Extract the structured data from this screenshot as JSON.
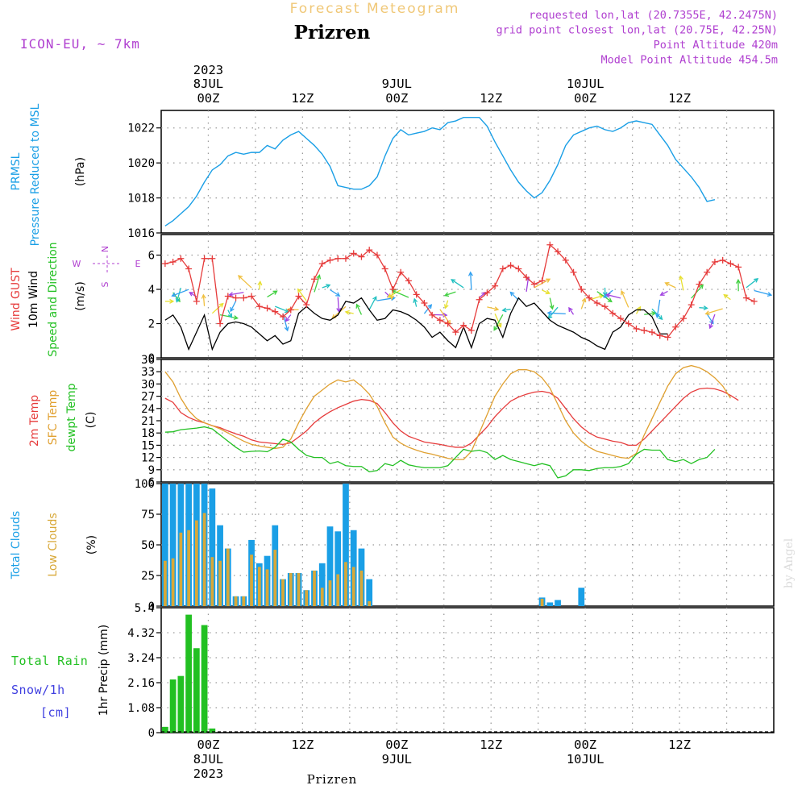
{
  "header": {
    "title": "Forecast Meteogram",
    "location": "Prizren",
    "model": "ICON-EU, ~ 7km",
    "info": [
      "requested lon,lat (20.7355E, 42.2475N)",
      "grid point closest lon,lat (20.75E, 42.25N)",
      "Point Altitude 420m",
      "Model Point Altitude 454.5m"
    ],
    "footer_location": "Prizren",
    "credit": "by Angel"
  },
  "time_axis": {
    "start": "2023-07-07T18Z",
    "step_hours": 1,
    "top_labels": [
      {
        "line1": "2023",
        "line2": "8JUL",
        "line3": "00Z",
        "hour": 6
      },
      {
        "line1": "",
        "line2": "",
        "line3": "12Z",
        "hour": 18
      },
      {
        "line1": "",
        "line2": "9JUL",
        "line3": "00Z",
        "hour": 30
      },
      {
        "line1": "",
        "line2": "",
        "line3": "12Z",
        "hour": 42
      },
      {
        "line1": "",
        "line2": "10JUL",
        "line3": "00Z",
        "hour": 54
      },
      {
        "line1": "",
        "line2": "",
        "line3": "12Z",
        "hour": 66
      }
    ],
    "bottom_labels": [
      {
        "line1": "00Z",
        "line2": "8JUL",
        "line3": "2023",
        "hour": 6
      },
      {
        "line1": "12Z",
        "line2": "",
        "line3": "",
        "hour": 18
      },
      {
        "line1": "00Z",
        "line2": "9JUL",
        "line3": "",
        "hour": 30
      },
      {
        "line1": "12Z",
        "line2": "",
        "line3": "",
        "hour": 42
      },
      {
        "line1": "00Z",
        "line2": "10JUL",
        "line3": "",
        "hour": 54
      },
      {
        "line1": "12Z",
        "line2": "",
        "line3": "",
        "hour": 66
      }
    ]
  },
  "colors": {
    "prmsl": "#1a9fe6",
    "gust": "#e63b3b",
    "wind": "#000000",
    "temp2m": "#e63b3b",
    "sfc": "#e0a030",
    "dew": "#22c022",
    "total_clouds": "#1a9fe6",
    "low_clouds": "#d8a838",
    "rain": "#22c022",
    "snow": "#4040e0",
    "info": "#b040d0",
    "title": "#f0c878",
    "grid": "#9a9a9a"
  },
  "chart_data": [
    {
      "type": "line",
      "id": "pressure",
      "labels": {
        "left1": "PRMSL",
        "left2": "Pressure Reduced to MSL",
        "unit": "(hPa)"
      },
      "yticks": [
        1016,
        1018,
        1020,
        1022
      ],
      "ylim": [
        1016,
        1023
      ],
      "series": [
        {
          "name": "PRMSL",
          "values": [
            1016.4,
            1016.7,
            1017.1,
            1017.5,
            1018.1,
            1018.9,
            1019.6,
            1019.9,
            1020.4,
            1020.6,
            1020.5,
            1020.6,
            1020.6,
            1021.0,
            1020.8,
            1021.3,
            1021.6,
            1021.8,
            1021.4,
            1021.0,
            1020.5,
            1019.8,
            1018.7,
            1018.6,
            1018.5,
            1018.5,
            1018.7,
            1019.2,
            1020.4,
            1021.4,
            1021.9,
            1021.6,
            1021.7,
            1021.8,
            1022.0,
            1021.9,
            1022.3,
            1022.4,
            1022.6,
            1022.6,
            1022.6,
            1022.1,
            1021.2,
            1020.4,
            1019.6,
            1018.9,
            1018.4,
            1018.0,
            1018.3,
            1019.0,
            1019.9,
            1021.0,
            1021.6,
            1021.8,
            1022.0,
            1022.1,
            1021.9,
            1021.8,
            1022.0,
            1022.3,
            1022.4,
            1022.3,
            1022.2,
            1021.6,
            1021.0,
            1020.2,
            1019.7,
            1019.2,
            1018.6,
            1017.8,
            1017.9
          ]
        }
      ]
    },
    {
      "type": "line",
      "id": "wind",
      "labels": {
        "left1": "Wind GUST",
        "left2": "10m Wind",
        "left3": "Speed and Direction",
        "unit": "(m/s)",
        "compass": [
          "N",
          "W",
          "E",
          "S"
        ]
      },
      "yticks": [
        0,
        2,
        4,
        6
      ],
      "ylim": [
        0,
        7.2
      ],
      "series": [
        {
          "name": "Wind GUST",
          "values": [
            5.5,
            5.6,
            5.8,
            5.2,
            3.3,
            5.8,
            5.8,
            2.0,
            3.6,
            3.5,
            3.5,
            3.6,
            3.0,
            2.9,
            2.7,
            2.4,
            2.8,
            3.6,
            3.1,
            4.6,
            5.5,
            5.7,
            5.8,
            5.8,
            6.1,
            5.9,
            6.3,
            6.0,
            5.2,
            4.0,
            5.0,
            4.5,
            3.7,
            3.2,
            2.5,
            2.2,
            2.0,
            1.5,
            1.9,
            1.6,
            3.4,
            3.8,
            4.2,
            5.2,
            5.4,
            5.2,
            4.7,
            4.3,
            4.5,
            6.6,
            6.2,
            5.7,
            5.0,
            4.0,
            3.5,
            3.2,
            3.0,
            2.6,
            2.3,
            2.0,
            1.7,
            1.6,
            1.5,
            1.3,
            1.2,
            1.8,
            2.3,
            3.1,
            4.3,
            5.0,
            5.6,
            5.7,
            5.5,
            5.3,
            3.5,
            3.3
          ]
        },
        {
          "name": "10m Wind",
          "values": [
            2.2,
            2.5,
            1.8,
            0.5,
            1.5,
            2.5,
            0.5,
            1.5,
            2.0,
            2.1,
            2.0,
            1.8,
            1.4,
            1.0,
            1.3,
            0.8,
            1.0,
            2.6,
            3.0,
            2.6,
            2.3,
            2.2,
            2.5,
            3.3,
            3.2,
            3.5,
            2.8,
            2.2,
            2.3,
            2.8,
            2.7,
            2.5,
            2.2,
            1.8,
            1.2,
            1.5,
            1.0,
            0.6,
            1.8,
            0.6,
            2.0,
            2.3,
            2.2,
            1.2,
            2.6,
            3.5,
            3.0,
            3.2,
            2.7,
            2.2,
            1.9,
            1.7,
            1.5,
            1.2,
            1.0,
            0.7,
            0.5,
            1.5,
            1.8,
            2.5,
            2.8,
            2.8,
            2.4,
            1.4,
            1.4
          ]
        }
      ]
    },
    {
      "type": "line",
      "id": "temperature",
      "labels": {
        "left1": "2m Temp",
        "left2": "SFC Temp",
        "left3": "dewpt Temp",
        "unit": "(C)"
      },
      "yticks": [
        6,
        9,
        12,
        15,
        18,
        21,
        24,
        27,
        30,
        33,
        36
      ],
      "ylim": [
        6,
        36
      ],
      "series": [
        {
          "name": "2m Temp",
          "values": [
            26.5,
            25.5,
            23.0,
            21.8,
            21.0,
            20.5,
            19.8,
            19.3,
            18.5,
            17.8,
            17.2,
            16.3,
            15.8,
            15.6,
            15.4,
            15.2,
            15.6,
            17.0,
            18.5,
            20.5,
            22.0,
            23.2,
            24.2,
            25.0,
            25.8,
            26.2,
            26.0,
            25.2,
            23.0,
            20.5,
            18.5,
            17.2,
            16.5,
            15.8,
            15.5,
            15.2,
            14.8,
            14.5,
            14.5,
            15.5,
            17.5,
            19.5,
            22.0,
            24.0,
            25.8,
            26.8,
            27.5,
            28.0,
            28.2,
            27.8,
            26.5,
            24.0,
            21.5,
            19.5,
            18.0,
            17.0,
            16.5,
            16.0,
            15.7,
            15.0,
            15.0,
            16.5,
            18.5,
            20.5,
            22.5,
            24.5,
            26.5,
            28.0,
            28.8,
            29.0,
            28.8,
            28.2,
            27.2,
            26.0
          ]
        },
        {
          "name": "SFC Temp",
          "values": [
            33.0,
            30.5,
            26.5,
            23.5,
            21.5,
            20.5,
            19.8,
            19.0,
            18.0,
            17.0,
            16.0,
            15.2,
            14.8,
            14.5,
            14.2,
            14.5,
            16.5,
            20.5,
            24.0,
            27.0,
            28.5,
            30.0,
            31.0,
            30.5,
            31.0,
            29.5,
            27.5,
            24.5,
            20.5,
            17.0,
            15.5,
            14.5,
            13.8,
            13.2,
            12.8,
            12.3,
            11.8,
            11.5,
            11.5,
            13.5,
            18.0,
            22.5,
            27.0,
            30.0,
            32.5,
            33.5,
            33.5,
            33.0,
            31.5,
            29.0,
            25.0,
            21.0,
            18.0,
            16.0,
            14.5,
            13.5,
            13.0,
            12.5,
            12.0,
            11.8,
            13.0,
            17.5,
            21.5,
            25.5,
            29.5,
            32.5,
            34.0,
            34.5,
            34.0,
            33.0,
            31.5,
            29.5,
            26.5
          ]
        },
        {
          "name": "dewpt Temp",
          "values": [
            18.2,
            18.3,
            18.8,
            19.0,
            19.2,
            19.5,
            19.0,
            17.5,
            16.0,
            14.5,
            13.3,
            13.5,
            13.6,
            13.4,
            14.5,
            16.5,
            15.8,
            14.0,
            12.5,
            12.0,
            12.0,
            10.5,
            11.0,
            10.0,
            9.8,
            9.8,
            8.5,
            8.8,
            10.5,
            10.0,
            11.3,
            10.2,
            9.8,
            9.5,
            9.5,
            9.5,
            10.0,
            12.0,
            14.0,
            13.5,
            13.8,
            13.2,
            11.5,
            12.5,
            11.5,
            11.0,
            10.5,
            10.0,
            10.5,
            10.0,
            7.0,
            7.5,
            9.0,
            9.0,
            8.8,
            9.3,
            9.5,
            9.5,
            9.8,
            10.5,
            12.8,
            14.0,
            13.8,
            13.8,
            11.5,
            11.0,
            11.5,
            10.5,
            11.5,
            12.0,
            14.0
          ]
        }
      ]
    },
    {
      "type": "bar",
      "id": "clouds",
      "labels": {
        "left1": "Total Clouds",
        "left2": "Low Clouds",
        "unit": "(%)"
      },
      "yticks": [
        0,
        25,
        50,
        75,
        100
      ],
      "ylim": [
        0,
        100
      ],
      "series": [
        {
          "name": "Total Clouds",
          "values": [
            100,
            100,
            100,
            100,
            100,
            100,
            96,
            66,
            47,
            8,
            8,
            54,
            35,
            41,
            66,
            22,
            27,
            27,
            13,
            29,
            35,
            65,
            61,
            100,
            62,
            47,
            22,
            0,
            0,
            0,
            0,
            0,
            0,
            0,
            0,
            0,
            0,
            0,
            0,
            0,
            0,
            0,
            0,
            0,
            0,
            0,
            0,
            0,
            7,
            3,
            5,
            0,
            0,
            15,
            0,
            0,
            0,
            0,
            0,
            0,
            0,
            0,
            0,
            0,
            0,
            0,
            0,
            0,
            0,
            0,
            0,
            0,
            0,
            0,
            0,
            0
          ]
        },
        {
          "name": "Low Clouds",
          "values": [
            37,
            39,
            60,
            62,
            70,
            76,
            40,
            37,
            47,
            8,
            8,
            42,
            32,
            30,
            46,
            22,
            27,
            27,
            13,
            29,
            15,
            21,
            26,
            36,
            32,
            29,
            4,
            0,
            0,
            0,
            0,
            0,
            0,
            0,
            0,
            0,
            0,
            0,
            0,
            0,
            0,
            0,
            0,
            0,
            0,
            0,
            0,
            0,
            6,
            0,
            0,
            0,
            0,
            0,
            0,
            0,
            0,
            0,
            0,
            0,
            0,
            0,
            0,
            0,
            0,
            0,
            0,
            0,
            0,
            0,
            0,
            0,
            0,
            0,
            0,
            0
          ]
        }
      ]
    },
    {
      "type": "bar",
      "id": "precip",
      "labels": {
        "left1": "Total  Rain",
        "left2": "Snow/1h",
        "left3": "[cm]",
        "unit": "1hr Precip (mm)"
      },
      "yticks": [
        0,
        1.08,
        2.16,
        3.24,
        4.32,
        5.4
      ],
      "ylim": [
        0,
        5.4
      ],
      "series": [
        {
          "name": "Total Rain",
          "values": [
            0.25,
            2.3,
            2.45,
            5.1,
            3.65,
            4.65,
            0.18
          ]
        }
      ]
    }
  ]
}
